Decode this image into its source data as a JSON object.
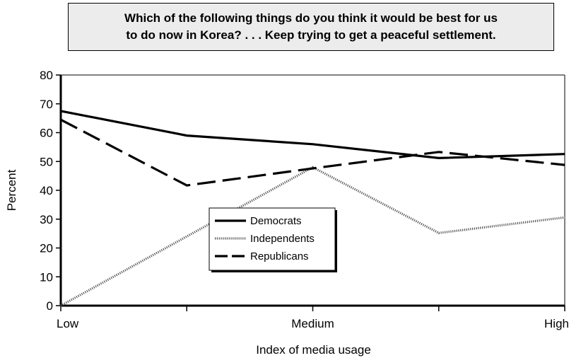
{
  "chart_data": {
    "type": "line",
    "title": "Which of the following things do you think it would be best for us to do now in Korea? . . . Keep trying to get a peaceful settlement.",
    "title_lines": [
      "Which of the following things do you think it would be best for us",
      "to do now in Korea? . . . Keep trying to get a peaceful settlement."
    ],
    "xlabel": "Index of media usage",
    "ylabel": "Percent",
    "ylim": [
      0,
      80
    ],
    "yticks": [
      0,
      10,
      20,
      30,
      40,
      50,
      60,
      70,
      80
    ],
    "x": [
      1,
      2,
      3,
      4,
      5
    ],
    "xtick_labels": [
      {
        "x": 1,
        "label": "Low"
      },
      {
        "x": 2,
        "label": ""
      },
      {
        "x": 3,
        "label": "Medium"
      },
      {
        "x": 4,
        "label": ""
      },
      {
        "x": 5,
        "label": "High"
      }
    ],
    "legend_position": "center-left",
    "series": [
      {
        "name": "Democrats",
        "style": "solid",
        "values": [
          67.5,
          59,
          56,
          51.2,
          52.6
        ]
      },
      {
        "name": "Independents",
        "style": "dotted",
        "values": [
          0,
          24,
          48,
          25.2,
          30.6
        ]
      },
      {
        "name": "Republicans",
        "style": "dashed",
        "values": [
          64.5,
          41.7,
          47.6,
          53.3,
          48.8
        ]
      }
    ],
    "colors": {
      "line": "#000000",
      "dotted": "#555555",
      "title_bg": "#ececec"
    },
    "grid": false
  }
}
